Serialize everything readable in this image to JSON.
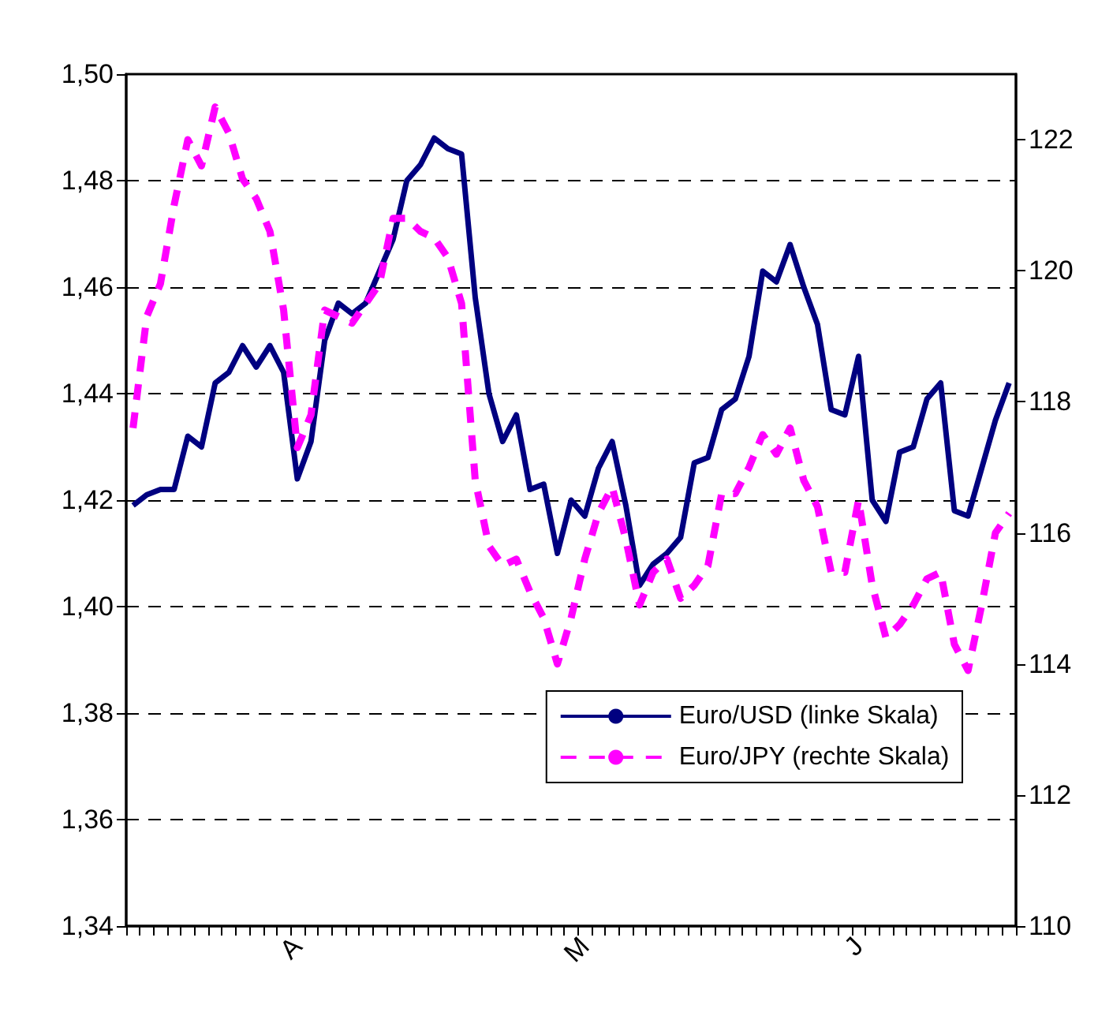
{
  "chart_data": {
    "type": "line",
    "categories": [
      null,
      null,
      null,
      null,
      null,
      null,
      null,
      null,
      null,
      null,
      null,
      null,
      "A",
      null,
      null,
      null,
      null,
      null,
      null,
      null,
      null,
      null,
      null,
      null,
      null,
      null,
      null,
      null,
      null,
      null,
      null,
      null,
      null,
      "M",
      null,
      null,
      null,
      null,
      null,
      null,
      null,
      null,
      null,
      null,
      null,
      null,
      null,
      null,
      null,
      null,
      null,
      null,
      null,
      "J",
      null,
      null,
      null,
      null,
      null,
      null,
      null,
      null,
      null,
      null,
      null
    ],
    "series": [
      {
        "name": "Euro/USD (linke Skala)",
        "color": "#000080",
        "line_style": "solid",
        "values": [
          1.419,
          1.421,
          1.422,
          1.422,
          1.432,
          1.43,
          1.442,
          1.444,
          1.449,
          1.445,
          1.449,
          1.444,
          1.424,
          1.431,
          1.45,
          1.457,
          1.455,
          1.457,
          1.463,
          1.469,
          1.48,
          1.483,
          1.488,
          1.486,
          1.485,
          1.458,
          1.44,
          1.431,
          1.436,
          1.422,
          1.423,
          1.41,
          1.42,
          1.417,
          1.426,
          1.431,
          1.419,
          1.404,
          1.408,
          1.41,
          1.413,
          1.427,
          1.428,
          1.437,
          1.439,
          1.447,
          1.463,
          1.461,
          1.468,
          1.46,
          1.453,
          1.437,
          1.436,
          1.447,
          1.42,
          1.416,
          1.429,
          1.43,
          1.439,
          1.442,
          1.418,
          1.417,
          1.426,
          1.435,
          1.442
        ]
      },
      {
        "name": "Euro/JPY (rechte Skala)",
        "color": "#ff00ff",
        "line_style": "dashed",
        "axis": "y2",
        "values": [
          117.6,
          119.3,
          119.8,
          121.0,
          122.0,
          121.6,
          122.5,
          122.1,
          121.4,
          121.1,
          120.6,
          119.4,
          117.3,
          117.8,
          119.4,
          119.3,
          119.2,
          119.5,
          119.8,
          120.8,
          120.8,
          120.6,
          120.5,
          120.2,
          119.5,
          116.8,
          115.8,
          115.5,
          115.6,
          115.1,
          114.7,
          114.0,
          114.7,
          115.6,
          116.3,
          116.7,
          115.9,
          114.9,
          115.4,
          115.6,
          115.0,
          115.2,
          115.5,
          116.6,
          116.6,
          117.0,
          117.5,
          117.2,
          117.6,
          116.8,
          116.4,
          115.4,
          115.4,
          116.5,
          115.2,
          114.4,
          114.6,
          114.9,
          115.3,
          115.4,
          114.3,
          113.9,
          114.9,
          116.0,
          116.3
        ]
      }
    ],
    "ylim": [
      1.34,
      1.5
    ],
    "yticks": [
      {
        "value": 1.34,
        "label": "1,34"
      },
      {
        "value": 1.36,
        "label": "1,36"
      },
      {
        "value": 1.38,
        "label": "1,38"
      },
      {
        "value": 1.4,
        "label": "1,40"
      },
      {
        "value": 1.42,
        "label": "1,42"
      },
      {
        "value": 1.44,
        "label": "1,44"
      },
      {
        "value": 1.46,
        "label": "1,46"
      },
      {
        "value": 1.48,
        "label": "1,48"
      },
      {
        "value": 1.5,
        "label": "1,50"
      }
    ],
    "y2lim": [
      110,
      123
    ],
    "y2ticks": [
      110,
      112,
      114,
      116,
      118,
      120,
      122
    ],
    "grid": "y",
    "legend": "bottom right",
    "marker": "none"
  }
}
